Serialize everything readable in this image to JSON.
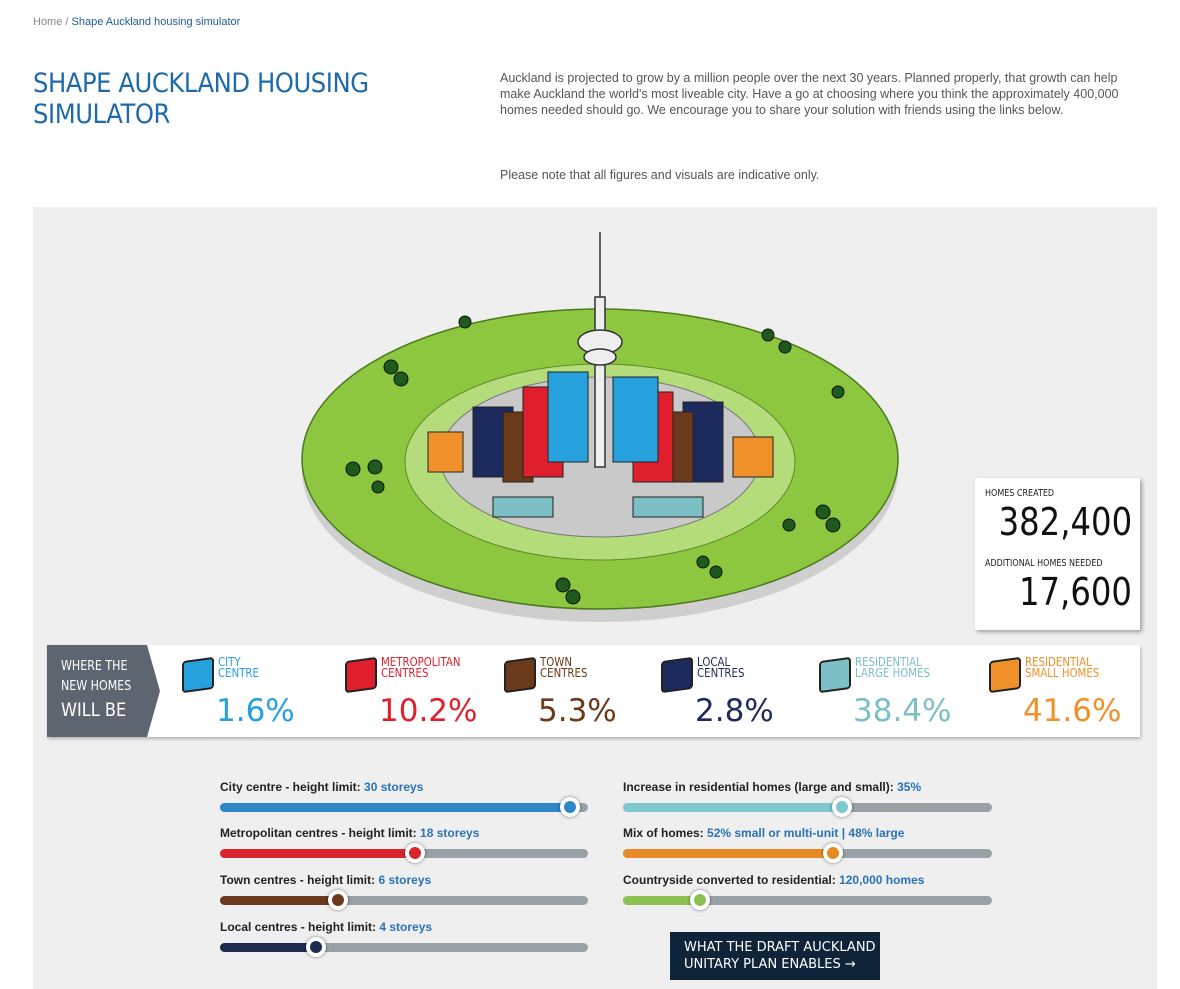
{
  "breadcrumb": {
    "home": "Home",
    "separator": "/",
    "current": "Shape Auckland housing simulator"
  },
  "header": {
    "title": "SHAPE AUCKLAND HOUSING SIMULATOR",
    "intro": "Auckland is projected to grow by a million people over the next 30 years. Planned properly, that growth can help make Auckland the world's most liveable city. Have a go at choosing where you think the approximately 400,000 homes needed should go. We encourage you to share your solution with friends using the links below.",
    "note": "Please note that all figures and visuals are indicative only."
  },
  "counter": {
    "created_label": "HOMES CREATED",
    "created": "382,400",
    "needed_label": "ADDITIONAL HOMES NEEDED",
    "needed": "17,600"
  },
  "legend": {
    "heading": [
      "WHERE THE",
      "NEW HOMES",
      "WILL BE"
    ],
    "items": [
      {
        "label": [
          "CITY",
          "CENTRE"
        ],
        "value": "1.6%",
        "color": "#27a0de"
      },
      {
        "label": [
          "METROPOLITAN",
          "CENTRES"
        ],
        "value": "10.2%",
        "color": "#e01f2c"
      },
      {
        "label": [
          "TOWN",
          "CENTRES"
        ],
        "value": "5.3%",
        "color": "#6b3a1b"
      },
      {
        "label": [
          "LOCAL",
          "CENTRES"
        ],
        "value": "2.8%",
        "color": "#1d2a5e"
      },
      {
        "label": [
          "RESIDENTIAL",
          "LARGE HOMES"
        ],
        "value": "38.4%",
        "color": "#7cbfc4"
      },
      {
        "label": [
          "RESIDENTIAL",
          "SMALL HOMES"
        ],
        "value": "41.6%",
        "color": "#ef9128"
      }
    ]
  },
  "sliders": [
    {
      "label": "City centre - height limit:",
      "value": "30 storeys"
    },
    {
      "label": "Metropolitan centres - height limit:",
      "value": "18 storeys"
    },
    {
      "label": "Town centres - height limit:",
      "value": "6 storeys"
    },
    {
      "label": "Local centres - height limit:",
      "value": "4 storeys"
    },
    {
      "label": "Increase in residential homes (large and small):",
      "value": "35%"
    },
    {
      "label": "Mix of homes:",
      "value": "52% small or multi-unit | 48% large"
    },
    {
      "label": "Countryside converted to residential:",
      "value": "120,000 homes"
    }
  ],
  "button": "WHAT THE DRAFT AUCKLAND UNITARY PLAN ENABLES"
}
